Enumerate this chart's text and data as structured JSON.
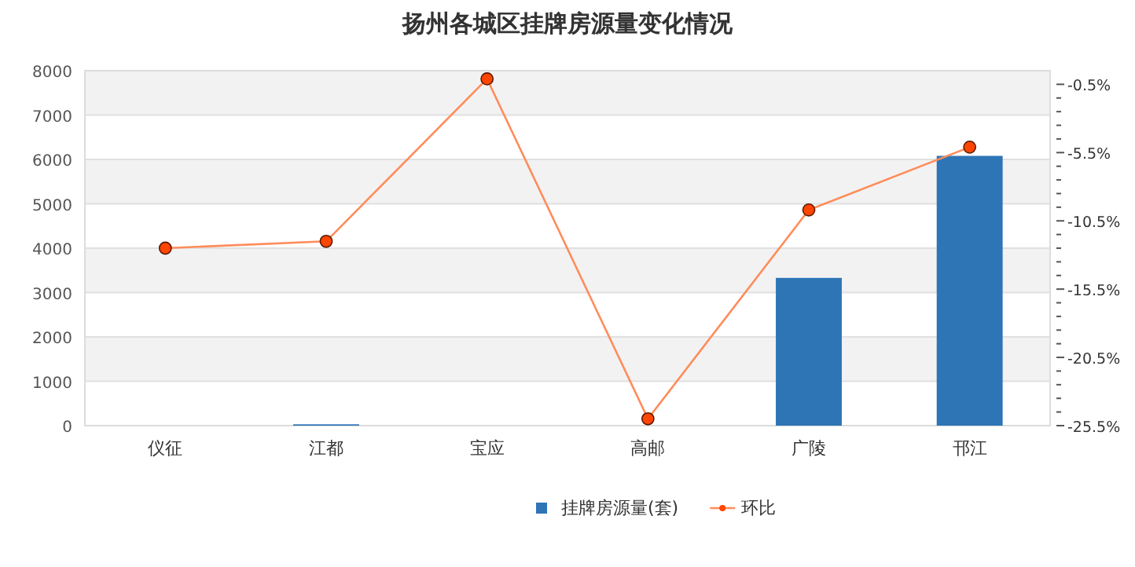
{
  "chart_data": {
    "type": "bar",
    "title": "扬州各城区挂牌房源量变化情况",
    "categories": [
      "仪征",
      "江都",
      "宝应",
      "高邮",
      "广陵",
      "邗江"
    ],
    "series": [
      {
        "name": "挂牌房源量(套)",
        "color": "#2e75b6",
        "values": [
          0,
          30,
          0,
          0,
          3330,
          6080
        ]
      },
      {
        "name": "环比",
        "type": "line",
        "axis": "y2",
        "color": "#ff8c5a",
        "marker": "circle",
        "values": [
          -12.5,
          -12.0,
          -0.1,
          -25.0,
          -9.7,
          -5.1
        ]
      }
    ],
    "ylim": [
      0,
      8000
    ],
    "yticks": [
      0,
      1000,
      2000,
      3000,
      4000,
      5000,
      6000,
      7000,
      8000
    ],
    "y2lim": [
      -25.5,
      0.5
    ],
    "y2ticks": [
      {
        "value": -25.5,
        "label": "-25.5%"
      },
      {
        "value": -24.5,
        "label": null
      },
      {
        "value": -23.5,
        "label": null
      },
      {
        "value": -22.5,
        "label": null
      },
      {
        "value": -21.5,
        "label": null
      },
      {
        "value": -20.5,
        "label": "-20.5%"
      },
      {
        "value": -19.5,
        "label": null
      },
      {
        "value": -18.5,
        "label": null
      },
      {
        "value": -17.5,
        "label": null
      },
      {
        "value": -16.5,
        "label": null
      },
      {
        "value": -15.5,
        "label": "-15.5%"
      },
      {
        "value": -14.5,
        "label": null
      },
      {
        "value": -13.5,
        "label": null
      },
      {
        "value": -12.5,
        "label": null
      },
      {
        "value": -11.5,
        "label": null
      },
      {
        "value": -10.5,
        "label": "-10.5%"
      },
      {
        "value": -9.5,
        "label": null
      },
      {
        "value": -8.5,
        "label": null
      },
      {
        "value": -7.5,
        "label": null
      },
      {
        "value": -6.5,
        "label": null
      },
      {
        "value": -5.5,
        "label": "-5.5%"
      },
      {
        "value": -4.5,
        "label": null
      },
      {
        "value": -3.5,
        "label": null
      },
      {
        "value": -2.5,
        "label": null
      },
      {
        "value": -1.5,
        "label": null
      },
      {
        "value": -0.5,
        "label": "-0.5%"
      }
    ],
    "grid": "y",
    "legend": "bottom"
  }
}
